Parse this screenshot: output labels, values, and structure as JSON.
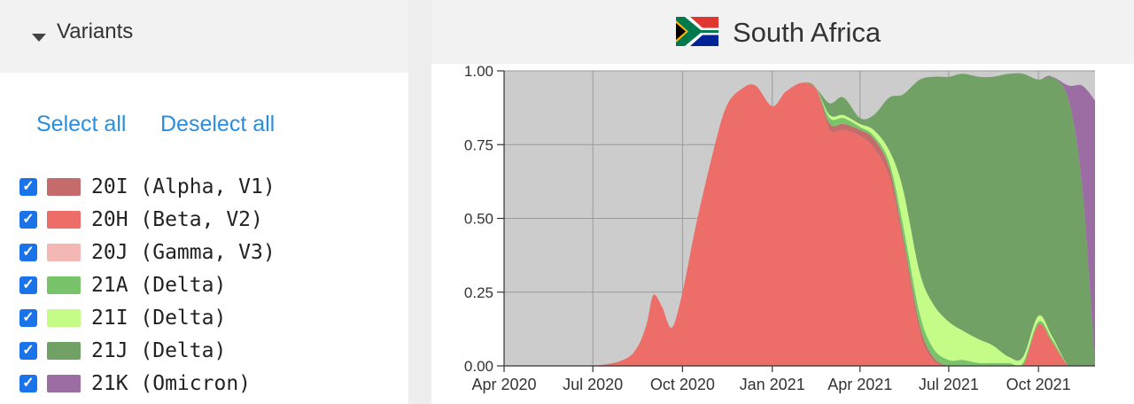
{
  "sidebar": {
    "title": "Variants",
    "select_all": "Select all",
    "deselect_all": "Deselect all",
    "variants": [
      {
        "label": "20I (Alpha, V1)",
        "color": "#c56b6b",
        "checked": true
      },
      {
        "label": "20H (Beta, V2)",
        "color": "#ed6e68",
        "checked": true
      },
      {
        "label": "20J (Gamma, V3)",
        "color": "#f3b7b4",
        "checked": true
      },
      {
        "label": "21A (Delta)",
        "color": "#79c46a",
        "checked": true
      },
      {
        "label": "21I (Delta)",
        "color": "#c5fb87",
        "checked": true
      },
      {
        "label": "21J (Delta)",
        "color": "#72a166",
        "checked": true
      },
      {
        "label": "21K (Omicron)",
        "color": "#9b6da3",
        "checked": true
      }
    ]
  },
  "main": {
    "country": "South Africa",
    "flag_icon": "south-africa-flag-icon"
  },
  "chart_data": {
    "type": "area",
    "stacked": true,
    "x": [
      "2020-04-01",
      "2020-05-15",
      "2020-07-01",
      "2020-08-01",
      "2020-08-15",
      "2020-08-25",
      "2020-09-01",
      "2020-09-10",
      "2020-09-20",
      "2020-10-01",
      "2020-10-15",
      "2020-11-01",
      "2020-11-15",
      "2020-12-01",
      "2020-12-15",
      "2021-01-01",
      "2021-01-15",
      "2021-02-01",
      "2021-02-15",
      "2021-03-01",
      "2021-03-15",
      "2021-04-01",
      "2021-04-15",
      "2021-05-01",
      "2021-05-15",
      "2021-06-01",
      "2021-06-15",
      "2021-07-01",
      "2021-07-15",
      "2021-08-01",
      "2021-08-15",
      "2021-09-01",
      "2021-09-15",
      "2021-10-01",
      "2021-10-15",
      "2021-11-01",
      "2021-11-15",
      "2021-11-28"
    ],
    "series": [
      {
        "name": "20H (Beta, V2)",
        "color": "#ed6e68",
        "values": [
          0,
          0,
          0,
          0.02,
          0.06,
          0.14,
          0.24,
          0.2,
          0.13,
          0.25,
          0.48,
          0.72,
          0.88,
          0.94,
          0.95,
          0.88,
          0.93,
          0.96,
          0.94,
          0.8,
          0.8,
          0.78,
          0.74,
          0.64,
          0.42,
          0.12,
          0.02,
          0,
          0,
          0,
          0,
          0,
          0,
          0.14,
          0.08,
          0,
          0,
          0
        ]
      },
      {
        "name": "20I (Alpha, V1)",
        "color": "#c56b6b",
        "values": [
          0,
          0,
          0,
          0,
          0,
          0,
          0,
          0,
          0,
          0,
          0,
          0,
          0,
          0,
          0,
          0,
          0,
          0,
          0,
          0.02,
          0.02,
          0.02,
          0.03,
          0.03,
          0.02,
          0.02,
          0.01,
          0,
          0,
          0,
          0,
          0,
          0,
          0,
          0,
          0,
          0,
          0
        ]
      },
      {
        "name": "20J (Gamma, V3)",
        "color": "#f3b7b4",
        "values": [
          0,
          0,
          0,
          0,
          0,
          0,
          0,
          0,
          0,
          0,
          0,
          0,
          0,
          0,
          0,
          0,
          0,
          0,
          0,
          0,
          0,
          0,
          0,
          0,
          0,
          0,
          0,
          0,
          0,
          0,
          0,
          0,
          0,
          0,
          0,
          0,
          0,
          0
        ]
      },
      {
        "name": "21A (Delta)",
        "color": "#79c46a",
        "values": [
          0,
          0,
          0,
          0,
          0,
          0,
          0,
          0,
          0,
          0,
          0,
          0,
          0,
          0,
          0,
          0,
          0,
          0,
          0,
          0.02,
          0.02,
          0.01,
          0.01,
          0.02,
          0.04,
          0.04,
          0.03,
          0.02,
          0.02,
          0.01,
          0.01,
          0.01,
          0.01,
          0.01,
          0.01,
          0,
          0,
          0
        ]
      },
      {
        "name": "21I (Delta)",
        "color": "#c5fb87",
        "values": [
          0,
          0,
          0,
          0,
          0,
          0,
          0,
          0,
          0,
          0,
          0,
          0,
          0,
          0,
          0,
          0,
          0,
          0,
          0,
          0.01,
          0.01,
          0.01,
          0.02,
          0.04,
          0.12,
          0.14,
          0.15,
          0.13,
          0.1,
          0.08,
          0.06,
          0.02,
          0.02,
          0.02,
          0.01,
          0,
          0,
          0
        ]
      },
      {
        "name": "21J (Delta)",
        "color": "#72a166",
        "values": [
          0,
          0,
          0,
          0,
          0,
          0,
          0,
          0,
          0,
          0,
          0,
          0,
          0,
          0,
          0,
          0,
          0,
          0,
          0,
          0.04,
          0.06,
          0.02,
          0.05,
          0.18,
          0.32,
          0.65,
          0.77,
          0.83,
          0.87,
          0.89,
          0.91,
          0.96,
          0.96,
          0.8,
          0.88,
          0.9,
          0.6,
          0.0
        ]
      },
      {
        "name": "21K (Omicron)",
        "color": "#9b6da3",
        "values": [
          0,
          0,
          0,
          0,
          0,
          0,
          0,
          0,
          0,
          0,
          0,
          0,
          0,
          0,
          0,
          0,
          0,
          0,
          0,
          0,
          0,
          0,
          0,
          0,
          0,
          0,
          0,
          0,
          0,
          0,
          0,
          0,
          0,
          0,
          0,
          0.05,
          0.35,
          0.9
        ]
      }
    ],
    "xlim": [
      "2020-04-01",
      "2021-11-28"
    ],
    "ylim": [
      0,
      1
    ],
    "x_ticks": [
      {
        "date": "2020-04-01",
        "label": "Apr 2020"
      },
      {
        "date": "2020-07-01",
        "label": "Jul 2020"
      },
      {
        "date": "2020-10-01",
        "label": "Oct 2020"
      },
      {
        "date": "2021-01-01",
        "label": "Jan 2021"
      },
      {
        "date": "2021-04-01",
        "label": "Apr 2021"
      },
      {
        "date": "2021-07-01",
        "label": "Jul 2021"
      },
      {
        "date": "2021-10-01",
        "label": "Oct 2021"
      }
    ],
    "y_ticks": [
      {
        "value": 1.0,
        "label": "1.00"
      },
      {
        "value": 0.75,
        "label": "0.75"
      },
      {
        "value": 0.5,
        "label": "0.50"
      },
      {
        "value": 0.25,
        "label": "0.25"
      },
      {
        "value": 0.0,
        "label": "0.00"
      }
    ],
    "background_color": "#cccccc",
    "grid": true,
    "legend": "none"
  }
}
